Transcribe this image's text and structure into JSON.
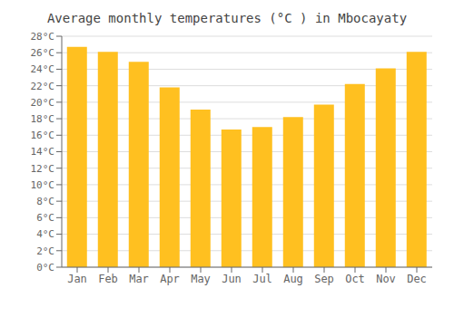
{
  "chart_data": {
    "type": "bar",
    "title": "Average monthly temperatures (°C ) in Mbocayaty",
    "categories": [
      "Jan",
      "Feb",
      "Mar",
      "Apr",
      "May",
      "Jun",
      "Jul",
      "Aug",
      "Sep",
      "Oct",
      "Nov",
      "Dec"
    ],
    "values": [
      26.7,
      26.1,
      24.9,
      21.8,
      19.1,
      16.7,
      17.0,
      18.2,
      19.7,
      22.2,
      24.1,
      26.1
    ],
    "color": "#FFC020",
    "ylim": [
      0,
      28
    ],
    "yticks": [
      {
        "value": 0,
        "label": "0°C"
      },
      {
        "value": 2,
        "label": "2°C"
      },
      {
        "value": 4,
        "label": "4°C"
      },
      {
        "value": 6,
        "label": "6°C"
      },
      {
        "value": 8,
        "label": "8°C"
      },
      {
        "value": 10,
        "label": "10°C"
      },
      {
        "value": 12,
        "label": "12°C"
      },
      {
        "value": 14,
        "label": "14°C"
      },
      {
        "value": 16,
        "label": "16°C"
      },
      {
        "value": 18,
        "label": "18°C"
      },
      {
        "value": 20,
        "label": "20°C"
      },
      {
        "value": 22,
        "label": "22°C"
      },
      {
        "value": 24,
        "label": "24°C"
      },
      {
        "value": 26,
        "label": "26°C"
      },
      {
        "value": 28,
        "label": "28°C"
      }
    ],
    "grid": true
  }
}
